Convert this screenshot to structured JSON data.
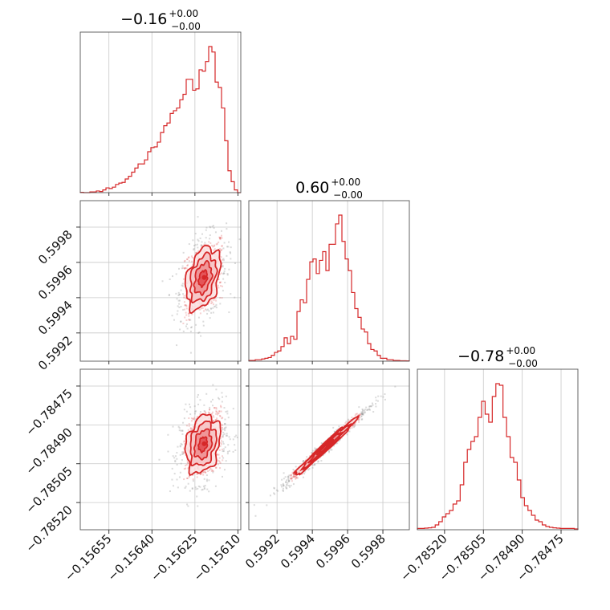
{
  "chart_data": {
    "type": "corner",
    "color": "#d62728",
    "grid": true,
    "parameters": [
      {
        "title_value": "−0.16",
        "title_plus": "+0.00",
        "title_minus": "−0.00",
        "range": [
          -0.15665,
          -0.15609
        ],
        "ticks": [
          -0.15655,
          -0.1564,
          -0.15625,
          -0.1561
        ],
        "tick_labels": [
          "−0.15655",
          "−0.15640",
          "−0.15625",
          "−0.15610"
        ],
        "histogram": [
          0.2,
          0,
          0,
          0.5,
          0.5,
          1.2,
          0.8,
          2,
          3.5,
          3,
          4,
          6,
          7,
          7.5,
          10,
          12,
          15,
          18,
          21,
          21,
          24,
          30,
          33,
          33.5,
          37,
          44,
          49,
          51,
          58,
          60,
          62,
          68,
          72,
          83,
          83,
          75,
          76,
          90,
          89,
          96,
          107,
          103,
          81,
          77,
          62,
          38,
          16,
          8,
          2,
          0
        ]
      },
      {
        "title_value": "0.60",
        "title_plus": "+0.00",
        "title_minus": "−0.00",
        "range": [
          0.59904,
          0.59995
        ],
        "ticks": [
          0.5992,
          0.5994,
          0.5996,
          0.5998
        ],
        "tick_labels": [
          "0.5992",
          "0.5994",
          "0.5996",
          "0.5998"
        ],
        "histogram": [
          0.5,
          0.5,
          1,
          1,
          1.5,
          2,
          2.5,
          4,
          6,
          7,
          10,
          16,
          12,
          17,
          15,
          34,
          42,
          40,
          56,
          68,
          70,
          60,
          69,
          75,
          62,
          80,
          80,
          94,
          100,
          82,
          70,
          62,
          47,
          36,
          30,
          22,
          20,
          12,
          8,
          7,
          4,
          2,
          2,
          1,
          1,
          0.5,
          0.5,
          0.3,
          0.3,
          0.2
        ]
      },
      {
        "title_value": "−0.78",
        "title_plus": "+0.00",
        "title_minus": "−0.00",
        "range": [
          -0.785305,
          -0.784685
        ],
        "ticks": [
          -0.7852,
          -0.78505,
          -0.7849,
          -0.78475
        ],
        "tick_labels": [
          "−0.78520",
          "−0.78505",
          "−0.78490",
          "−0.78475"
        ],
        "histogram": [
          0.8,
          0.8,
          1,
          1.2,
          1.5,
          3,
          5,
          8,
          10,
          12,
          16,
          18,
          28,
          42,
          50,
          55,
          58,
          70,
          80,
          72,
          67,
          83,
          91,
          90,
          70,
          58,
          45,
          42,
          31,
          20,
          15,
          12,
          9,
          6,
          5,
          3,
          2,
          1.5,
          1.2,
          1,
          0.8,
          0.8,
          0.8,
          0.8,
          0.5
        ]
      }
    ],
    "correlations": [
      {
        "row": 1,
        "col": 0,
        "center": [
          -0.156222,
          0.59951
        ],
        "spread": [
          3e-05,
          8.85e-05
        ],
        "rho": 0.35
      },
      {
        "row": 2,
        "col": 0,
        "center": [
          -0.156222,
          -0.784975
        ],
        "spread": [
          3e-05,
          5.6e-05
        ],
        "rho": 0.25
      },
      {
        "row": 2,
        "col": 1,
        "center": [
          0.599475,
          -0.784985
        ],
        "spread": [
          8.85e-05,
          5.6e-05
        ],
        "rho": 0.985
      }
    ]
  }
}
